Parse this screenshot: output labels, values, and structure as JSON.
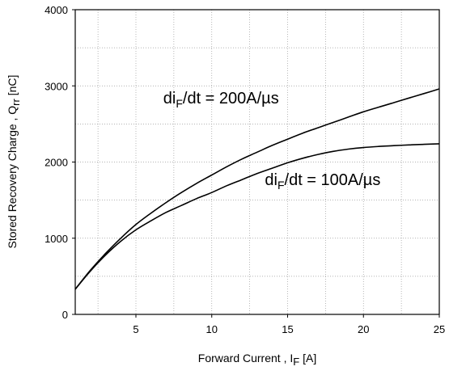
{
  "chart_data": {
    "type": "line",
    "xlabel": {
      "main": "Forward Current , I",
      "sub": "F",
      "unit": " [A]"
    },
    "ylabel": {
      "main": "Stored Recovery Charge , Q",
      "sub": "rr",
      "unit": " [nC]"
    },
    "xlim": [
      1,
      25
    ],
    "ylim": [
      0,
      4000
    ],
    "xticks": [
      5,
      10,
      15,
      20,
      25
    ],
    "xtick_labels": [
      "5",
      "10",
      "15",
      "20",
      "25"
    ],
    "yticks": [
      0,
      1000,
      2000,
      3000,
      4000
    ],
    "ytick_labels": [
      "0",
      "1000",
      "2000",
      "3000",
      "4000"
    ],
    "x_minor_gridlines": [
      1,
      2.5,
      5,
      7.5,
      10,
      12.5,
      15,
      17.5,
      20,
      22.5,
      25
    ],
    "y_minor_gridlines": [
      0,
      500,
      1000,
      1500,
      2000,
      2500,
      3000,
      3500,
      4000
    ],
    "grid": true,
    "series": [
      {
        "x": [
          1,
          2,
          3,
          4,
          5,
          6,
          7,
          8,
          9,
          10,
          11,
          12,
          13,
          14,
          15,
          16,
          17,
          18,
          19,
          20,
          21,
          22,
          23,
          24,
          25
        ],
        "values": [
          330,
          580,
          800,
          1000,
          1180,
          1330,
          1470,
          1600,
          1720,
          1830,
          1940,
          2040,
          2130,
          2220,
          2300,
          2380,
          2450,
          2520,
          2590,
          2660,
          2720,
          2780,
          2840,
          2900,
          2960
        ]
      },
      {
        "x": [
          1,
          2,
          3,
          4,
          5,
          6,
          7,
          8,
          9,
          10,
          11,
          12,
          13,
          14,
          15,
          16,
          17,
          18,
          19,
          20,
          21,
          22,
          23,
          24,
          25
        ],
        "values": [
          330,
          570,
          780,
          960,
          1110,
          1230,
          1340,
          1430,
          1520,
          1600,
          1690,
          1770,
          1850,
          1920,
          1990,
          2050,
          2100,
          2140,
          2170,
          2190,
          2205,
          2215,
          2225,
          2232,
          2240
        ]
      }
    ],
    "annotations": [
      {
        "text": {
          "pre": "di",
          "sub": "F",
          "post": "/dt = 200A/µs"
        },
        "x": 6.8,
        "y": 2770
      },
      {
        "text": {
          "pre": "di",
          "sub": "F",
          "post": "/dt = 100A/µs"
        },
        "x": 13.5,
        "y": 1700
      }
    ]
  }
}
